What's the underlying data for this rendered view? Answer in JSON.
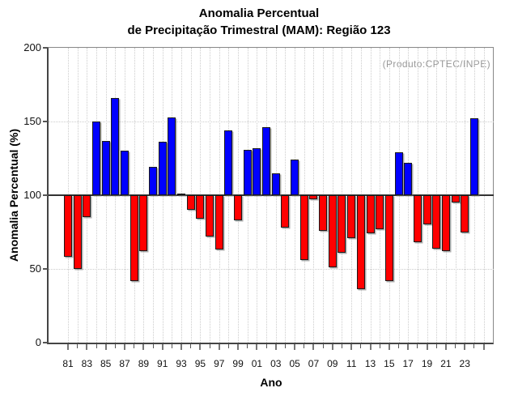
{
  "chart_data": {
    "type": "bar",
    "title": "Anomalia Percentual",
    "subtitle": "de Precipitação Trimestral (MAM): Região 123",
    "annotation": "(Produto:CPTEC/INPE)",
    "xlabel": "Ano",
    "ylabel": "Anomalia Percentual (%)",
    "ylim": [
      0,
      200
    ],
    "yticks": [
      0,
      50,
      100,
      150,
      200
    ],
    "baseline": 100,
    "grid_y_dotted": [
      50,
      150
    ],
    "grid": "dotted vertical line per year, dotted horizontal at 50 and 150, solid line at 100",
    "legend_position": "none",
    "bar_colors": {
      "above_baseline": "#0000ff",
      "below_baseline": "#ff0000"
    },
    "x_tick_labels": [
      "81",
      "83",
      "85",
      "87",
      "89",
      "91",
      "93",
      "95",
      "97",
      "99",
      "01",
      "03",
      "05",
      "07",
      "09",
      "11",
      "13",
      "15",
      "17",
      "19",
      "21",
      "23"
    ],
    "years": [
      1981,
      1982,
      1983,
      1984,
      1985,
      1986,
      1987,
      1988,
      1989,
      1990,
      1991,
      1992,
      1993,
      1994,
      1995,
      1996,
      1997,
      1998,
      1999,
      2000,
      2001,
      2002,
      2003,
      2004,
      2005,
      2006,
      2007,
      2008,
      2009,
      2010,
      2011,
      2012,
      2013,
      2014,
      2015,
      2016,
      2017,
      2018,
      2019,
      2020,
      2021,
      2022,
      2023,
      2024
    ],
    "values": [
      58,
      50,
      85,
      150,
      137,
      166,
      130,
      42,
      62,
      119,
      136,
      153,
      101,
      90,
      84,
      72,
      63,
      144,
      83,
      131,
      132,
      146,
      115,
      78,
      124,
      56,
      97,
      76,
      51,
      61,
      71,
      36,
      74,
      77,
      42,
      129,
      122,
      68,
      80,
      64,
      62,
      95,
      75,
      152
    ]
  }
}
